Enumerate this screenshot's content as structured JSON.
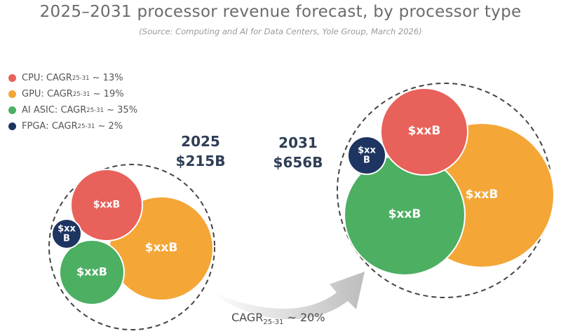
{
  "chart_data": {
    "type": "bubble",
    "title": "2025–2031 processor revenue forecast, by processor type",
    "subtitle": "(Source: Computing and AI for Data Centers, Yole Group, March 2026)",
    "legend": [
      {
        "name": "CPU",
        "cagr_prefix": "CAGR",
        "cagr_sub": "25-31",
        "cagr_value": " ~ 13%",
        "color": "#e8615a"
      },
      {
        "name": "GPU",
        "cagr_prefix": "CAGR",
        "cagr_sub": "25-31",
        "cagr_value": " ~ 19%",
        "color": "#f4a637"
      },
      {
        "name": "AI ASIC",
        "cagr_prefix": "CAGR",
        "cagr_sub": "25-31",
        "cagr_value": " ~ 35%",
        "color": "#4caf62"
      },
      {
        "name": "FPGA",
        "cagr_prefix": "CAGR",
        "cagr_sub": "25-31",
        "cagr_value": " ~ 2%",
        "color": "#1e3461"
      }
    ],
    "years": [
      {
        "year": "2025",
        "total": "$215B",
        "bubbles": [
          {
            "type": "GPU",
            "label": "$xxB"
          },
          {
            "type": "CPU",
            "label": "$xxB"
          },
          {
            "type": "AI ASIC",
            "label": "$xxB"
          },
          {
            "type": "FPGA",
            "label": "$xx\nB"
          }
        ]
      },
      {
        "year": "2031",
        "total": "$656B",
        "bubbles": [
          {
            "type": "GPU",
            "label": "$xxB"
          },
          {
            "type": "AI ASIC",
            "label": "$xxB"
          },
          {
            "type": "CPU",
            "label": "$xxB"
          },
          {
            "type": "FPGA",
            "label": "$xx\nB"
          }
        ]
      }
    ],
    "growth": {
      "prefix": "CAGR",
      "sub": "25-31",
      "value": " ~ 20%"
    }
  }
}
